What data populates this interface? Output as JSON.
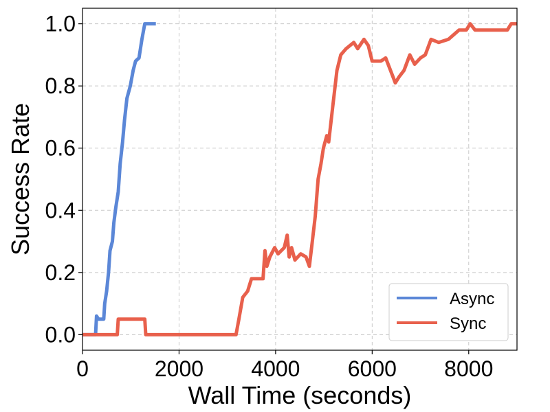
{
  "chart_data": {
    "type": "line",
    "xlabel": "Wall Time (seconds)",
    "ylabel": "Success Rate",
    "xlim": [
      0,
      9000
    ],
    "ylim": [
      -0.05,
      1.05
    ],
    "xticks": [
      0,
      2000,
      4000,
      6000,
      8000
    ],
    "yticks": [
      0.0,
      0.2,
      0.4,
      0.6,
      0.8,
      1.0
    ],
    "xtick_labels": [
      "0",
      "2000",
      "4000",
      "6000",
      "8000"
    ],
    "ytick_labels": [
      "0.0",
      "0.2",
      "0.4",
      "0.6",
      "0.8",
      "1.0"
    ],
    "grid": true,
    "legend_position": "bottom-right",
    "series": [
      {
        "name": "Async",
        "color": "#5b87d7",
        "points": [
          [
            0,
            0.0
          ],
          [
            270,
            0.0
          ],
          [
            290,
            0.06
          ],
          [
            330,
            0.05
          ],
          [
            440,
            0.05
          ],
          [
            460,
            0.1
          ],
          [
            500,
            0.14
          ],
          [
            540,
            0.2
          ],
          [
            570,
            0.27
          ],
          [
            620,
            0.3
          ],
          [
            650,
            0.36
          ],
          [
            690,
            0.41
          ],
          [
            740,
            0.46
          ],
          [
            780,
            0.55
          ],
          [
            830,
            0.62
          ],
          [
            870,
            0.69
          ],
          [
            920,
            0.76
          ],
          [
            990,
            0.8
          ],
          [
            1050,
            0.85
          ],
          [
            1100,
            0.88
          ],
          [
            1170,
            0.89
          ],
          [
            1230,
            0.95
          ],
          [
            1290,
            1.0
          ],
          [
            1520,
            1.0
          ]
        ]
      },
      {
        "name": "Sync",
        "color": "#e8604c",
        "points": [
          [
            0,
            0.0
          ],
          [
            720,
            0.0
          ],
          [
            740,
            0.05
          ],
          [
            1290,
            0.05
          ],
          [
            1310,
            0.0
          ],
          [
            3180,
            0.0
          ],
          [
            3240,
            0.05
          ],
          [
            3320,
            0.12
          ],
          [
            3420,
            0.14
          ],
          [
            3500,
            0.18
          ],
          [
            3740,
            0.18
          ],
          [
            3780,
            0.27
          ],
          [
            3820,
            0.22
          ],
          [
            3880,
            0.25
          ],
          [
            3980,
            0.28
          ],
          [
            4050,
            0.26
          ],
          [
            4180,
            0.28
          ],
          [
            4240,
            0.32
          ],
          [
            4280,
            0.25
          ],
          [
            4330,
            0.28
          ],
          [
            4400,
            0.24
          ],
          [
            4520,
            0.26
          ],
          [
            4630,
            0.25
          ],
          [
            4700,
            0.22
          ],
          [
            4760,
            0.3
          ],
          [
            4820,
            0.38
          ],
          [
            4880,
            0.5
          ],
          [
            4940,
            0.55
          ],
          [
            4990,
            0.6
          ],
          [
            5060,
            0.64
          ],
          [
            5100,
            0.62
          ],
          [
            5180,
            0.73
          ],
          [
            5270,
            0.85
          ],
          [
            5350,
            0.9
          ],
          [
            5460,
            0.92
          ],
          [
            5620,
            0.94
          ],
          [
            5700,
            0.92
          ],
          [
            5830,
            0.95
          ],
          [
            5920,
            0.93
          ],
          [
            6000,
            0.88
          ],
          [
            6180,
            0.88
          ],
          [
            6280,
            0.89
          ],
          [
            6380,
            0.85
          ],
          [
            6480,
            0.81
          ],
          [
            6560,
            0.83
          ],
          [
            6660,
            0.85
          ],
          [
            6780,
            0.9
          ],
          [
            6880,
            0.87
          ],
          [
            7000,
            0.89
          ],
          [
            7100,
            0.9
          ],
          [
            7220,
            0.95
          ],
          [
            7380,
            0.94
          ],
          [
            7580,
            0.95
          ],
          [
            7800,
            0.98
          ],
          [
            7950,
            0.98
          ],
          [
            8030,
            1.0
          ],
          [
            8130,
            0.98
          ],
          [
            8800,
            0.98
          ],
          [
            8880,
            1.0
          ],
          [
            9000,
            1.0
          ]
        ]
      }
    ]
  }
}
